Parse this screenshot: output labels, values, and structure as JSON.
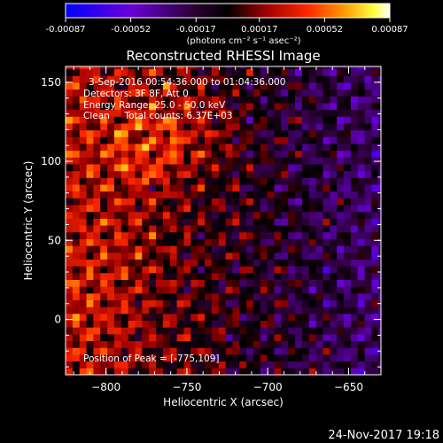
{
  "chart_data": {
    "type": "heatmap",
    "title": "Reconstructed RHESSI Image",
    "xlabel": "Heliocentric X (arcsec)",
    "ylabel": "Heliocentric Y (arcsec)",
    "xlim": [
      -825,
      -630
    ],
    "ylim": [
      -35,
      160
    ],
    "x_ticks": [
      -800,
      -750,
      -700,
      -650
    ],
    "y_ticks": [
      0,
      50,
      100,
      150
    ],
    "annotations": {
      "line1": "3-Sep-2016 00:54:36.000 to 01:04:36.000",
      "line2": "Detectors: 3F 8F, Att 0",
      "line3": "Energy Range: 25.0 - 50.0 keV",
      "line4": "Clean     Total counts: 6.37E+03",
      "peak": "Position of Peak = [-775,109]"
    },
    "peak_position": [
      -775,
      109
    ],
    "colorbar": {
      "ticks": [
        "-0.00087",
        "-0.00052",
        "-0.00017",
        "0.00017",
        "0.00052",
        "0.00087"
      ],
      "range": [
        -0.00087,
        0.00087
      ],
      "units_label": "(photons cm⁻² s⁻¹ asec⁻²)",
      "colormap": [
        "#0000ff",
        "#6a00d8",
        "#2a0030",
        "#000000",
        "#a00000",
        "#ff2a00",
        "#ff9a00",
        "#ffff40",
        "#ffffff"
      ]
    },
    "footer_timestamp": "24-Nov-2017 19:18"
  }
}
